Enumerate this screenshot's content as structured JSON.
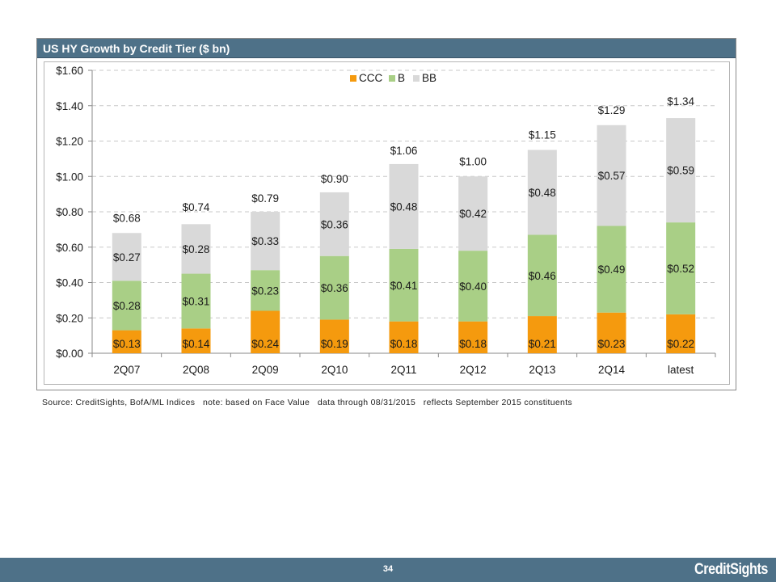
{
  "chart_data": {
    "type": "bar",
    "stacked": true,
    "title": "US HY Growth by Credit Tier ($ bn)",
    "categories": [
      "2Q07",
      "2Q08",
      "2Q09",
      "2Q10",
      "2Q11",
      "2Q12",
      "2Q13",
      "2Q14",
      "latest"
    ],
    "series": [
      {
        "name": "CCC",
        "color": "#f59a0e",
        "values": [
          0.13,
          0.14,
          0.24,
          0.19,
          0.18,
          0.18,
          0.21,
          0.23,
          0.22
        ],
        "labels": [
          "$0.13",
          "$0.14",
          "$0.24",
          "$0.19",
          "$0.18",
          "$0.18",
          "$0.21",
          "$0.23",
          "$0.22"
        ]
      },
      {
        "name": "B",
        "color": "#a9cf86",
        "values": [
          0.28,
          0.31,
          0.23,
          0.36,
          0.41,
          0.4,
          0.46,
          0.49,
          0.52
        ],
        "labels": [
          "$0.28",
          "$0.31",
          "$0.23",
          "$0.36",
          "$0.41",
          "$0.40",
          "$0.46",
          "$0.49",
          "$0.52"
        ]
      },
      {
        "name": "BB",
        "color": "#d9d9d9",
        "values": [
          0.27,
          0.28,
          0.33,
          0.36,
          0.48,
          0.42,
          0.48,
          0.57,
          0.59
        ],
        "labels": [
          "$0.27",
          "$0.28",
          "$0.33",
          "$0.36",
          "$0.48",
          "$0.42",
          "$0.48",
          "$0.57",
          "$0.59"
        ]
      }
    ],
    "totals": [
      0.68,
      0.74,
      0.79,
      0.9,
      1.06,
      1.0,
      1.15,
      1.29,
      1.34
    ],
    "total_labels": [
      "$0.68",
      "$0.74",
      "$0.79",
      "$0.90",
      "$1.06",
      "$1.00",
      "$1.15",
      "$1.29",
      "$1.34"
    ],
    "ylim": [
      0,
      1.6
    ],
    "yticks": [
      0,
      0.2,
      0.4,
      0.6,
      0.8,
      1.0,
      1.2,
      1.4,
      1.6
    ],
    "ytick_labels": [
      "$0.00",
      "$0.20",
      "$0.40",
      "$0.60",
      "$0.80",
      "$1.00",
      "$1.20",
      "$1.40",
      "$1.60"
    ],
    "grid": true,
    "legend_position": "top-center",
    "xlabel": "",
    "ylabel": ""
  },
  "source_note": "Source: CreditSights, BofA/ML Indices   note: based on Face Value   data through 08/31/2015   reflects September 2015 constituents",
  "footer": {
    "page_number": "34",
    "brand": "CreditSights"
  }
}
